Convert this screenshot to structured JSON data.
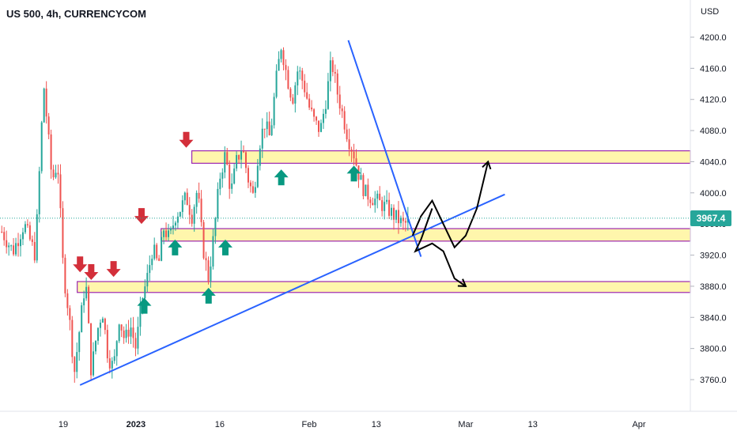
{
  "header": {
    "symbol_label": "US 500, 4h, CURRENCYCOM",
    "currency": "USD",
    "last_price_label": "3967.4"
  },
  "colors": {
    "up": "#26a69a",
    "down": "#ef5350",
    "zone_fill": "#fff59d",
    "zone_border": "#9c27b0",
    "trendline": "#2962ff",
    "arrow_up": "#089981",
    "arrow_down": "#d32f3a",
    "last_price": "#26a69a"
  },
  "chart_data": {
    "type": "candlestick",
    "title": "US 500, 4h, CURRENCYCOM",
    "ylabel": "USD",
    "ylim": [
      3740,
      4220
    ],
    "y_ticks": [
      "4200.0",
      "4160.0",
      "4120.0",
      "4080.0",
      "4040.0",
      "4000.0",
      "3960.0",
      "3920.0",
      "3880.0",
      "3840.0",
      "3800.0",
      "3760.0"
    ],
    "x_ticks": [
      {
        "label": "19",
        "day": 0
      },
      {
        "label": "2023",
        "day": 13
      },
      {
        "label": "16",
        "day": 28
      },
      {
        "label": "Feb",
        "day": 44
      },
      {
        "label": "13",
        "day": 56
      },
      {
        "label": "Mar",
        "day": 72
      },
      {
        "label": "13",
        "day": 84
      },
      {
        "label": "Apr",
        "day": 103
      }
    ],
    "xlim_days": [
      -11,
      108
    ],
    "last_price": 3967.4,
    "price_path": [
      [
        -11,
        3950
      ],
      [
        -9,
        3925
      ],
      [
        -7,
        3960
      ],
      [
        -5,
        3920
      ],
      [
        -3.5,
        4140
      ],
      [
        -2,
        4015
      ],
      [
        -1,
        4040
      ],
      [
        0,
        3900
      ],
      [
        1,
        3845
      ],
      [
        2,
        3770
      ],
      [
        3,
        3830
      ],
      [
        4,
        3890
      ],
      [
        5,
        3770
      ],
      [
        6,
        3820
      ],
      [
        7,
        3850
      ],
      [
        8,
        3790
      ],
      [
        9,
        3775
      ],
      [
        10,
        3840
      ],
      [
        11,
        3810
      ],
      [
        12,
        3830
      ],
      [
        13,
        3800
      ],
      [
        14,
        3860
      ],
      [
        15,
        3890
      ],
      [
        16,
        3930
      ],
      [
        17,
        3905
      ],
      [
        18,
        3955
      ],
      [
        19,
        3940
      ],
      [
        20,
        3970
      ],
      [
        21,
        3980
      ],
      [
        22,
        3995
      ],
      [
        23,
        3970
      ],
      [
        24,
        4005
      ],
      [
        25,
        3930
      ],
      [
        26,
        3890
      ],
      [
        27,
        3950
      ],
      [
        28,
        4020
      ],
      [
        29,
        4050
      ],
      [
        30,
        4000
      ],
      [
        31,
        4040
      ],
      [
        32,
        4060
      ],
      [
        33,
        4020
      ],
      [
        34,
        3995
      ],
      [
        35,
        4060
      ],
      [
        36,
        4090
      ],
      [
        37,
        4070
      ],
      [
        38,
        4140
      ],
      [
        39,
        4190
      ],
      [
        40,
        4150
      ],
      [
        41,
        4120
      ],
      [
        42,
        4160
      ],
      [
        43,
        4140
      ],
      [
        44,
        4110
      ],
      [
        45,
        4090
      ],
      [
        46,
        4080
      ],
      [
        47,
        4120
      ],
      [
        48,
        4170
      ],
      [
        49,
        4130
      ],
      [
        50,
        4100
      ],
      [
        51,
        4070
      ],
      [
        52,
        4050
      ],
      [
        53,
        4020
      ],
      [
        54,
        4000
      ],
      [
        55,
        3995
      ],
      [
        56,
        3990
      ],
      [
        57,
        3985
      ],
      [
        58,
        3980
      ],
      [
        59,
        3972
      ],
      [
        60,
        3965
      ],
      [
        61,
        3958
      ],
      [
        62,
        3968
      ]
    ],
    "support_zones": [
      {
        "low": 4038,
        "high": 4054,
        "from_day": 23
      },
      {
        "low": 3938,
        "high": 3954,
        "from_day": 17.5
      },
      {
        "low": 3872,
        "high": 3886,
        "from_day": 2.5
      }
    ],
    "trendlines": [
      {
        "from": [
          3,
          3753
        ],
        "to": [
          79,
          3998
        ]
      },
      {
        "from": [
          51,
          4196
        ],
        "to": [
          64,
          3918
        ]
      }
    ],
    "projection_paths": [
      [
        [
          62.5,
          3945
        ],
        [
          64,
          3970
        ],
        [
          66,
          3990
        ],
        [
          68,
          3960
        ],
        [
          70,
          3930
        ],
        [
          72,
          3945
        ],
        [
          74,
          3980
        ],
        [
          76,
          4040
        ]
      ],
      [
        [
          66,
          3980
        ],
        [
          64,
          3940
        ],
        [
          63,
          3925
        ],
        [
          66,
          3935
        ],
        [
          68,
          3925
        ],
        [
          70,
          3890
        ],
        [
          72,
          3880
        ]
      ]
    ],
    "signal_arrows": [
      {
        "dir": "down",
        "day": 3,
        "price": 3898
      },
      {
        "dir": "down",
        "day": 5,
        "price": 3888
      },
      {
        "dir": "down",
        "day": 9,
        "price": 3892
      },
      {
        "dir": "down",
        "day": 14,
        "price": 3960
      },
      {
        "dir": "down",
        "day": 22,
        "price": 4058
      },
      {
        "dir": "up",
        "day": 14.5,
        "price": 3865
      },
      {
        "dir": "up",
        "day": 20,
        "price": 3940
      },
      {
        "dir": "up",
        "day": 26,
        "price": 3878
      },
      {
        "dir": "up",
        "day": 29,
        "price": 3940
      },
      {
        "dir": "up",
        "day": 39,
        "price": 4030
      },
      {
        "dir": "up",
        "day": 52,
        "price": 4035
      }
    ]
  }
}
